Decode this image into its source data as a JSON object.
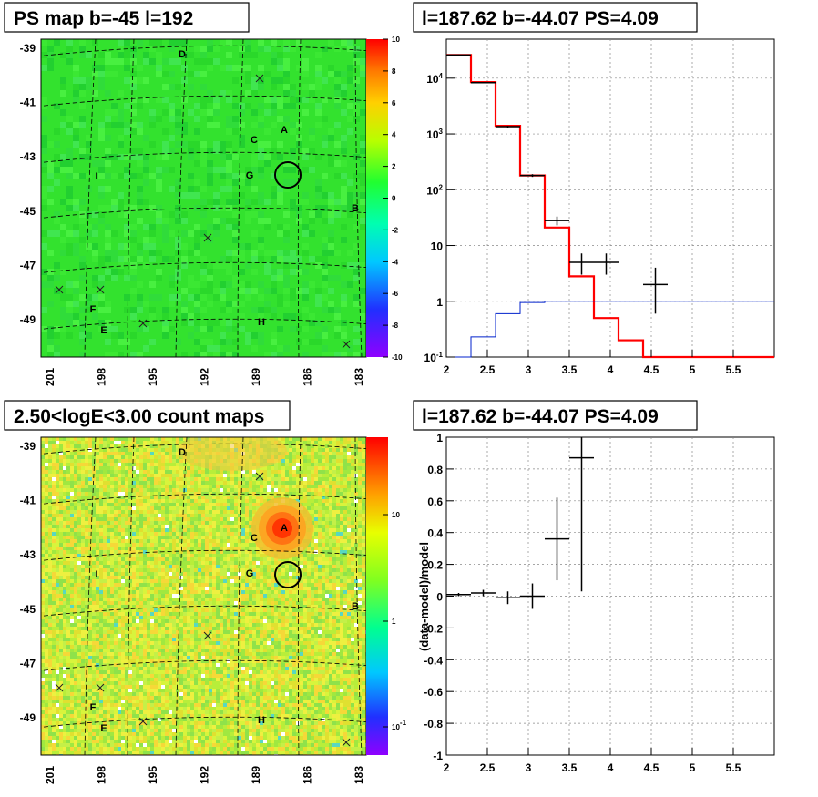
{
  "panels": {
    "ps_map_title": "PS map b=-45 l=192",
    "spectrum_title": "l=187.62 b=-44.07 PS=4.09",
    "count_map_title": "2.50<logE<3.00 count maps",
    "residual_title": "l=187.62 b=-44.07 PS=4.09"
  },
  "colors": {
    "map_green": "#33e22e",
    "model": "#ff0000",
    "background": "#0022cc",
    "data": "#000000"
  },
  "chart_data": [
    {
      "type": "heatmap",
      "title": "PS map b=-45 l=192",
      "x_ticks": [
        "201",
        "198",
        "195",
        "192",
        "189",
        "186",
        "183"
      ],
      "y_ticks": [
        "-39",
        "-41",
        "-43",
        "-45",
        "-47",
        "-49"
      ],
      "colorbar_ticks": [
        "10",
        "8",
        "6",
        "4",
        "2",
        "0",
        "-2",
        "-4",
        "-6",
        "-8",
        "-10"
      ],
      "colorbar_range": [
        -10,
        10
      ],
      "source_labels": [
        "D",
        "A",
        "C",
        "G",
        "I",
        "B",
        "F",
        "E",
        "H"
      ],
      "circle_marker": {
        "l": 187.62,
        "b": -44.07
      }
    },
    {
      "type": "line",
      "title": "l=187.62 b=-44.07 PS=4.09",
      "x_ticks": [
        "2",
        "2.5",
        "3",
        "3.5",
        "4",
        "4.5",
        "5",
        "5.5"
      ],
      "y_ticks": [
        "10^-1",
        "1",
        "10",
        "10^2",
        "10^3",
        "10^4"
      ],
      "xlim": [
        2,
        6
      ],
      "ylim": [
        0.1,
        50000
      ],
      "yscale": "log",
      "grid": true,
      "series": [
        {
          "style": "step",
          "color": "#ff0000",
          "edges": [
            2.0,
            2.3,
            2.6,
            2.9,
            3.2,
            3.5,
            3.8,
            4.1,
            4.4,
            6.0
          ],
          "values": [
            26000,
            8500,
            1400,
            180,
            21,
            2.8,
            0.5,
            0.2,
            0.1
          ]
        },
        {
          "style": "step",
          "color": "#0022cc",
          "edges": [
            2.0,
            2.3,
            2.6,
            2.9,
            3.2,
            6.0
          ],
          "values": [
            0.1,
            0.23,
            0.6,
            0.95,
            1.0
          ]
        },
        {
          "style": "errorbar",
          "color": "#000000",
          "points": [
            {
              "x": 2.15,
              "y": 26000,
              "xerr": 0.15,
              "ylo": 25500,
              "yhi": 26500
            },
            {
              "x": 2.45,
              "y": 8300,
              "xerr": 0.15,
              "ylo": 8100,
              "yhi": 8500
            },
            {
              "x": 2.75,
              "y": 1350,
              "xerr": 0.15,
              "ylo": 1300,
              "yhi": 1400
            },
            {
              "x": 3.05,
              "y": 180,
              "xerr": 0.15,
              "ylo": 170,
              "yhi": 190
            },
            {
              "x": 3.35,
              "y": 28,
              "xerr": 0.15,
              "ylo": 23,
              "yhi": 33
            },
            {
              "x": 3.65,
              "y": 5,
              "xerr": 0.15,
              "ylo": 3,
              "yhi": 7.2
            },
            {
              "x": 3.95,
              "y": 5,
              "xerr": 0.15,
              "ylo": 3,
              "yhi": 7.2
            },
            {
              "x": 4.55,
              "y": 2,
              "xerr": 0.15,
              "ylo": 0.6,
              "yhi": 4
            }
          ]
        }
      ]
    },
    {
      "type": "heatmap",
      "title": "2.50<logE<3.00 count maps",
      "x_ticks": [
        "201",
        "198",
        "195",
        "192",
        "189",
        "186",
        "183"
      ],
      "y_ticks": [
        "-39",
        "-41",
        "-43",
        "-45",
        "-47",
        "-49"
      ],
      "colorbar_ticks": [
        "10",
        "1",
        "10^-1"
      ],
      "colorbar_scale": "log",
      "source_labels": [
        "D",
        "A",
        "C",
        "G",
        "I",
        "B",
        "F",
        "E",
        "H"
      ],
      "circle_marker": {
        "l": 187.62,
        "b": -44.07
      }
    },
    {
      "type": "scatter",
      "title": "l=187.62 b=-44.07 PS=4.09",
      "ylabel": "(data-model)/model",
      "x_ticks": [
        "2",
        "2.5",
        "3",
        "3.5",
        "4",
        "4.5",
        "5",
        "5.5"
      ],
      "y_ticks": [
        "1",
        "0.8",
        "0.6",
        "0.4",
        "0.2",
        "0",
        "-0.2",
        "-0.4",
        "-0.6",
        "-0.8",
        "-1"
      ],
      "xlim": [
        2,
        6
      ],
      "ylim": [
        -1,
        1
      ],
      "grid": true,
      "points": [
        {
          "x": 2.15,
          "y": 0.01,
          "xerr": 0.15,
          "yerr": 0.01
        },
        {
          "x": 2.45,
          "y": 0.02,
          "xerr": 0.15,
          "yerr": 0.02
        },
        {
          "x": 2.75,
          "y": -0.01,
          "xerr": 0.15,
          "yerr": 0.04
        },
        {
          "x": 3.05,
          "y": 0.0,
          "xerr": 0.15,
          "yerr": 0.08
        },
        {
          "x": 3.35,
          "y": 0.36,
          "xerr": 0.15,
          "yerr": 0.26
        },
        {
          "x": 3.65,
          "y": 0.87,
          "xerr": 0.15,
          "yerr": 0.84
        }
      ]
    }
  ]
}
